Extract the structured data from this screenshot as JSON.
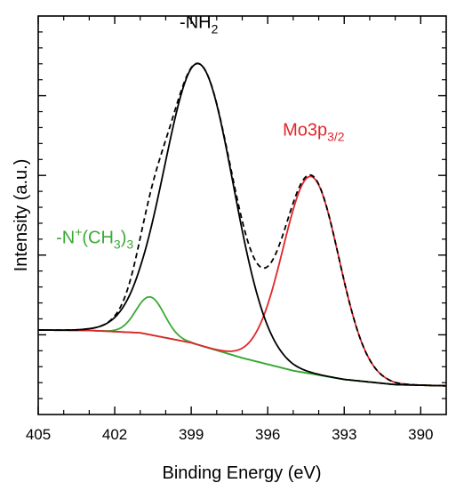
{
  "chart_data": {
    "type": "line",
    "title": "",
    "xlabel": "Binding Energy (eV)",
    "ylabel": "Intensity (a.u.)",
    "xlim": [
      405,
      389
    ],
    "x_reversed": true,
    "ylim": [
      0,
      1
    ],
    "y_tick_labels_shown": false,
    "grid": false,
    "legend": "none",
    "x_ticks": [
      405,
      402,
      399,
      396,
      393,
      390
    ],
    "x_tick_labels": [
      "405",
      "402",
      "399",
      "396",
      "393",
      "390"
    ],
    "annotations": [
      {
        "id": "nh2",
        "base": "-NH",
        "sub": "2",
        "x": 398.7,
        "y": 0.97,
        "color": "#000000"
      },
      {
        "id": "mo3p",
        "base": "Mo3p",
        "sub": "3/2",
        "x": 394.2,
        "y": 0.7,
        "color": "#e0262a"
      },
      {
        "id": "nch3",
        "base": "-N",
        "sup": "+",
        "mid": "(CH",
        "sub": "3",
        "tail": ")",
        "sub2": "3",
        "x": 404.3,
        "y": 0.43,
        "color": "#3aaa35"
      }
    ],
    "series": [
      {
        "id": "background",
        "color": "#3aaa35",
        "style": "solid",
        "x": [
          405,
          403,
          401,
          399,
          397,
          395,
          393,
          391,
          389
        ],
        "y": [
          0.212,
          0.211,
          0.205,
          0.18,
          0.142,
          0.11,
          0.088,
          0.075,
          0.072
        ]
      },
      {
        "id": "nh2_component",
        "color": "#000000",
        "style": "solid",
        "center": 398.7,
        "amplitude": 0.706,
        "width": 1.35
      },
      {
        "id": "nch3_component",
        "color": "#3aaa35",
        "style": "solid",
        "center": 400.6,
        "amplitude": 0.095,
        "width": 0.55
      },
      {
        "id": "mo3p_component",
        "color": "#e0262a",
        "style": "solid",
        "center": 394.3,
        "amplitude": 0.495,
        "width": 1.1
      },
      {
        "id": "envelope",
        "color": "#000000",
        "style": "dashed"
      }
    ]
  }
}
